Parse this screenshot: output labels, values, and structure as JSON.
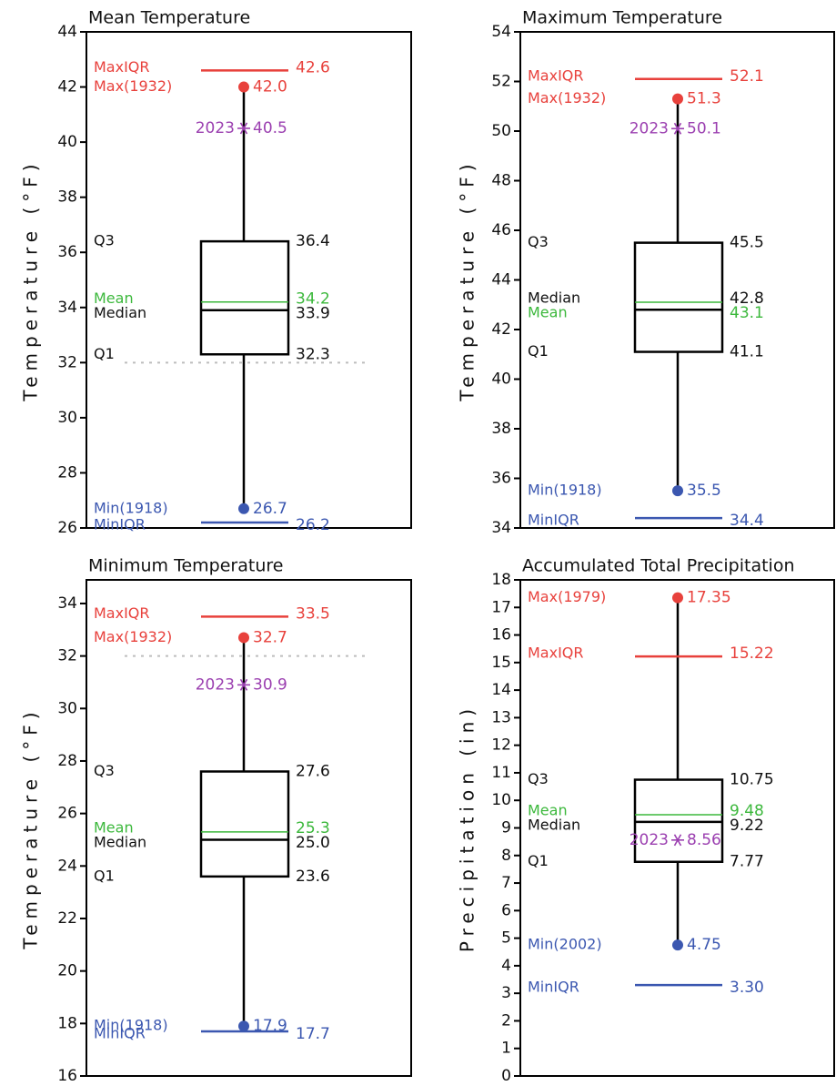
{
  "chart_data": [
    {
      "type": "box",
      "title": "Mean Temperature",
      "ylabel": "Temperature (°F)",
      "ylim": [
        26,
        44
      ],
      "yticks": [
        26,
        28,
        30,
        32,
        34,
        36,
        38,
        40,
        42,
        44
      ],
      "freezing_line": 32,
      "maxiqr": 42.6,
      "max": 42.0,
      "current": 40.5,
      "q3": 36.4,
      "mean": 34.2,
      "median": 33.9,
      "q1": 32.3,
      "min": 26.7,
      "miniqr": 26.2,
      "labels": {
        "maxiqr": "MaxIQR",
        "max": "Max(1932)",
        "current": "2023",
        "q3": "Q3",
        "mean": "Mean",
        "median": "Median",
        "q1": "Q1",
        "min": "Min(1918)",
        "miniqr": "MinIQR"
      },
      "values_text": {
        "maxiqr": "42.6",
        "max": "42.0",
        "current": "40.5",
        "q3": "36.4",
        "mean": "34.2",
        "median": "33.9",
        "q1": "32.3",
        "min": "26.7",
        "miniqr": "26.2"
      },
      "order": [
        "mean",
        "median"
      ]
    },
    {
      "type": "box",
      "title": "Maximum Temperature",
      "ylabel": "Temperature (°F)",
      "ylim": [
        34,
        54
      ],
      "yticks": [
        34,
        36,
        38,
        40,
        42,
        44,
        46,
        48,
        50,
        52,
        54
      ],
      "freezing_line": null,
      "maxiqr": 52.1,
      "max": 51.3,
      "current": 50.1,
      "q3": 45.5,
      "mean": 43.1,
      "median": 42.8,
      "q1": 41.1,
      "min": 35.5,
      "miniqr": 34.4,
      "labels": {
        "maxiqr": "MaxIQR",
        "max": "Max(1932)",
        "current": "2023",
        "q3": "Q3",
        "mean": "Mean",
        "median": "Median",
        "q1": "Q1",
        "min": "Min(1918)",
        "miniqr": "MinIQR"
      },
      "values_text": {
        "maxiqr": "52.1",
        "max": "51.3",
        "current": "50.1",
        "q3": "45.5",
        "mean": "43.1",
        "median": "42.8",
        "q1": "41.1",
        "min": "35.5",
        "miniqr": "34.4"
      },
      "order": [
        "median",
        "mean"
      ]
    },
    {
      "type": "box",
      "title": "Minimum Temperature",
      "ylabel": "Temperature (°F)",
      "ylim": [
        16,
        34.9
      ],
      "yticks": [
        16,
        18,
        20,
        22,
        24,
        26,
        28,
        30,
        32,
        34
      ],
      "freezing_line": 32,
      "maxiqr": 33.5,
      "max": 32.7,
      "current": 30.9,
      "q3": 27.6,
      "mean": 25.3,
      "median": 25.0,
      "q1": 23.6,
      "min": 17.9,
      "miniqr": 17.7,
      "labels": {
        "maxiqr": "MaxIQR",
        "max": "Max(1932)",
        "current": "2023",
        "q3": "Q3",
        "mean": "Mean",
        "median": "Median",
        "q1": "Q1",
        "min": "Min(1918)",
        "miniqr": "MinIQR"
      },
      "values_text": {
        "maxiqr": "33.5",
        "max": "32.7",
        "current": "30.9",
        "q3": "27.6",
        "mean": "25.3",
        "median": "25.0",
        "q1": "23.6",
        "min": "17.9",
        "miniqr": "17.7"
      },
      "order": [
        "mean",
        "median"
      ]
    },
    {
      "type": "box",
      "title": "Accumulated Total Precipitation",
      "ylabel": "Precipitation (in)",
      "ylim": [
        0,
        18
      ],
      "yticks": [
        0,
        1,
        2,
        3,
        4,
        5,
        6,
        7,
        8,
        9,
        10,
        11,
        12,
        13,
        14,
        15,
        16,
        17,
        18
      ],
      "freezing_line": null,
      "maxiqr": 15.22,
      "max": 17.35,
      "current": 8.56,
      "q3": 10.75,
      "mean": 9.48,
      "median": 9.22,
      "q1": 7.77,
      "min": 4.75,
      "miniqr": 3.3,
      "labels": {
        "maxiqr": "MaxIQR",
        "max": "Max(1979)",
        "current": "2023",
        "q3": "Q3",
        "mean": "Mean",
        "median": "Median",
        "q1": "Q1",
        "min": "Min(2002)",
        "miniqr": "MinIQR"
      },
      "values_text": {
        "maxiqr": "15.22",
        "max": "17.35",
        "current": "8.56",
        "q3": "10.75",
        "mean": "9.48",
        "median": "9.22",
        "q1": "7.77",
        "min": "4.75",
        "miniqr": "3.30"
      },
      "order": [
        "mean",
        "median"
      ]
    }
  ],
  "colors": {
    "max": "#e8413c",
    "min": "#3b57b0",
    "mean": "#3cb83c",
    "current": "#9b3fb0",
    "stats": "#111111",
    "freezing": "#bdbdbd"
  },
  "current_marker_icon": "asterisk-icon"
}
